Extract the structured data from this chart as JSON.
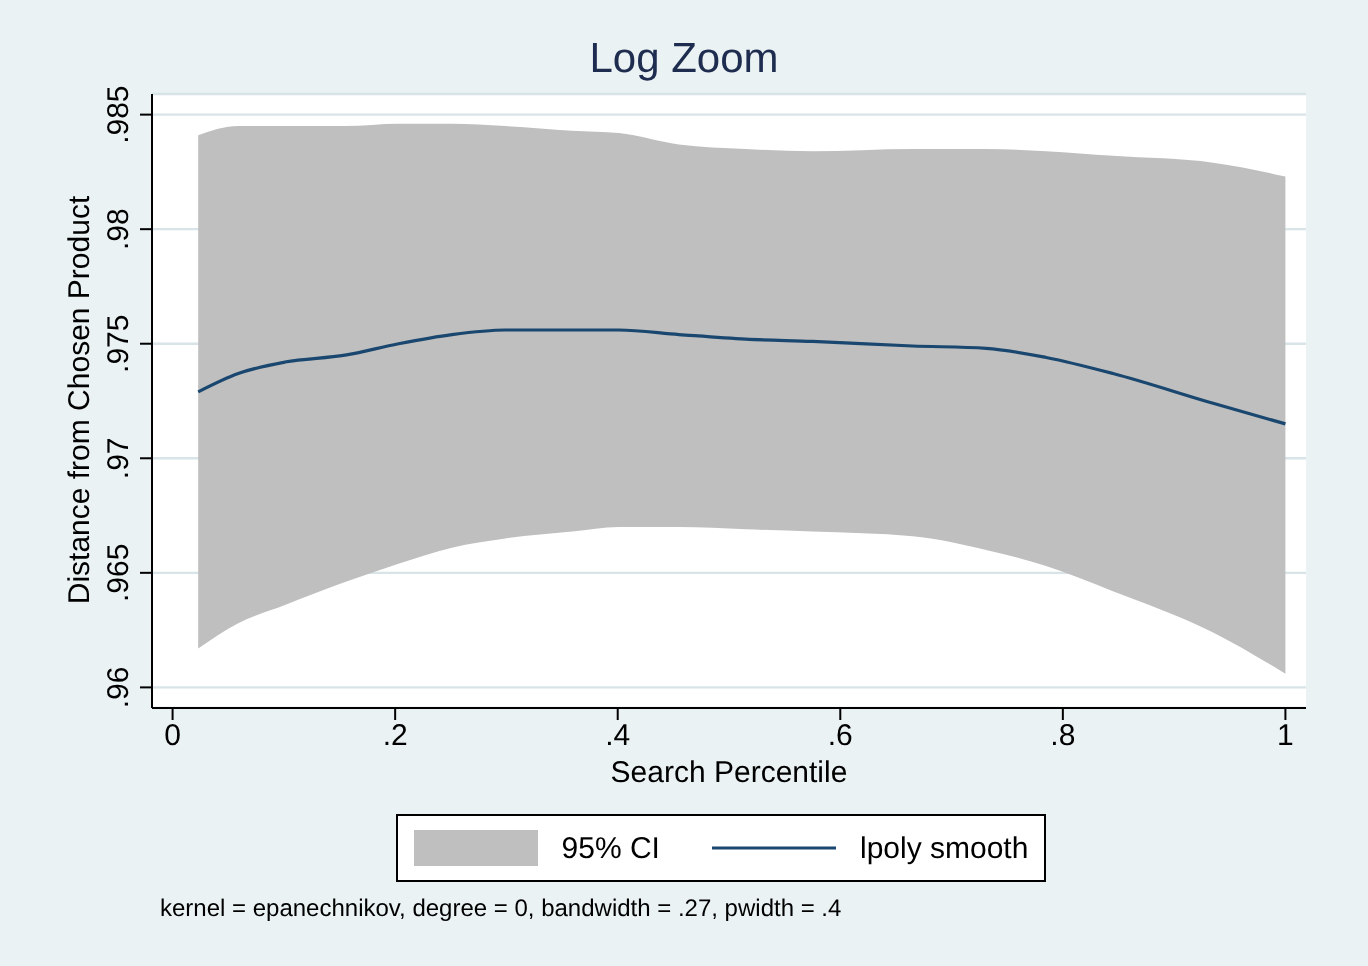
{
  "chart_data": {
    "type": "line",
    "title": "Log Zoom",
    "xlabel": "Search Percentile",
    "ylabel": "Distance from Chosen Product",
    "annotations": [
      "95% CI",
      "kernel = epanechnikov, degree = 0, bandwidth = .27, pwidth = .4"
    ],
    "x": [
      0.023,
      0.059,
      0.101,
      0.155,
      0.203,
      0.251,
      0.299,
      0.359,
      0.401,
      0.455,
      0.515,
      0.575,
      0.665,
      0.731,
      0.785,
      0.845,
      0.935,
      1.0
    ],
    "series": [
      {
        "name": "lpoly smooth",
        "color": "#1a476f",
        "values": [
          0.9729,
          0.9737,
          0.9742,
          0.9745,
          0.975,
          0.9754,
          0.9756,
          0.9756,
          0.9756,
          0.9754,
          0.9752,
          0.9751,
          0.9749,
          0.9748,
          0.9744,
          0.9737,
          0.9724,
          0.9715
        ],
        "lower": [
          0.9617,
          0.9628,
          0.9636,
          0.9646,
          0.9654,
          0.9661,
          0.9665,
          0.9668,
          0.967,
          0.967,
          0.9669,
          0.9668,
          0.9666,
          0.966,
          0.9653,
          0.9642,
          0.9624,
          0.9606
        ],
        "upper": [
          0.9841,
          0.9845,
          0.9845,
          0.9845,
          0.9846,
          0.9846,
          0.9845,
          0.9843,
          0.9842,
          0.9837,
          0.9835,
          0.9834,
          0.9835,
          0.9835,
          0.9834,
          0.9832,
          0.9829,
          0.9823
        ]
      }
    ],
    "xlim": [
      -0.0185,
      1.0185
    ],
    "xticks": [
      0,
      {
        "value": 0.2,
        "label": ".2"
      },
      {
        "value": 0.4,
        "label": ".4"
      },
      {
        "value": 0.6,
        "label": ".6"
      },
      {
        "value": 0.8,
        "label": ".8"
      },
      1
    ],
    "ylim": [
      0.9591,
      0.9859
    ],
    "yticks": [
      {
        "value": 0.96,
        "label": ".96"
      },
      {
        "value": 0.965,
        "label": ".965"
      },
      {
        "value": 0.97,
        "label": ".97"
      },
      {
        "value": 0.975,
        "label": ".975"
      },
      {
        "value": 0.98,
        "label": ".98"
      },
      {
        "value": 0.985,
        "label": ".985"
      }
    ],
    "grid": "y",
    "legend": "bottom",
    "marker": "none",
    "line_style": "solid"
  }
}
